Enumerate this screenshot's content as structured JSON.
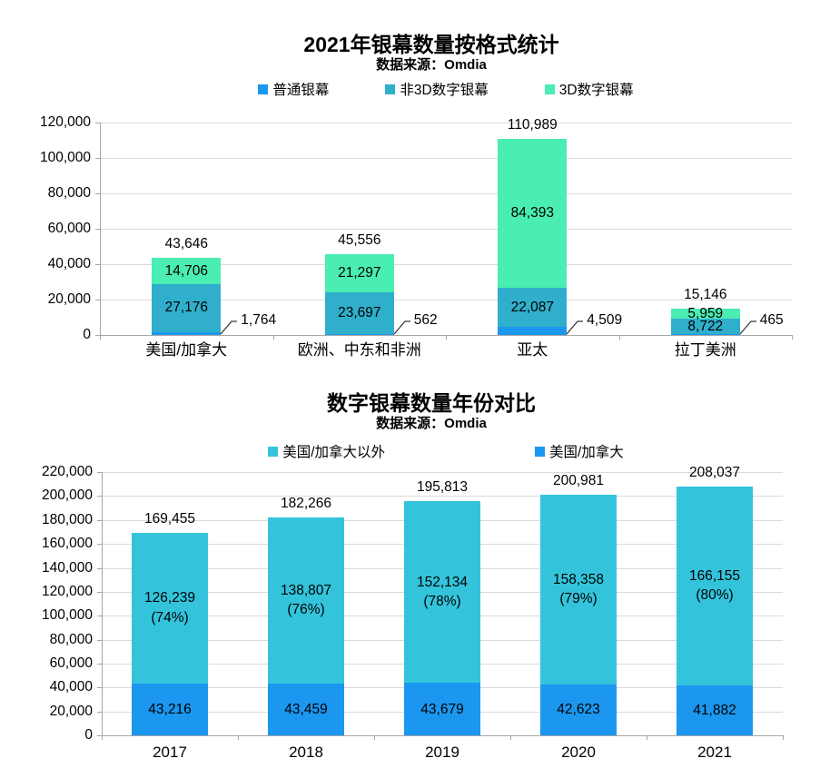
{
  "charts": [
    {
      "title": "2021年银幕数量按格式统计",
      "subtitle": "数据来源：Omdia",
      "legend": [
        {
          "label": "普通银幕",
          "color": "#1B97EF"
        },
        {
          "label": "非3D数字银幕",
          "color": "#2FAFCB"
        },
        {
          "label": "3D数字银幕",
          "color": "#4AEDB2"
        }
      ],
      "chart_data": {
        "type": "bar",
        "stacked": true,
        "grid": true,
        "legend_position": "top",
        "categories": [
          "美国/加拿大",
          "欧洲、中东和非洲",
          "亚太",
          "拉丁美洲"
        ],
        "series": [
          {
            "name": "普通银幕",
            "color": "#1B97EF",
            "values": [
              1764,
              562,
              4509,
              465
            ],
            "label_style": "callout"
          },
          {
            "name": "非3D数字银幕",
            "color": "#2FAFCB",
            "values": [
              27176,
              23697,
              22087,
              8722
            ],
            "label_style": "inside"
          },
          {
            "name": "3D数字银幕",
            "color": "#4AEDB2",
            "values": [
              14706,
              21297,
              84393,
              5959
            ],
            "label_style": "inside"
          }
        ],
        "totals": [
          43646,
          45556,
          110989,
          15146
        ],
        "ylabel": "",
        "xlabel": "",
        "ylim": [
          0,
          120000
        ],
        "ytick_step": 20000
      }
    },
    {
      "title": "数字银幕数量年份对比",
      "subtitle": "数据来源：Omdia",
      "legend": [
        {
          "label": "美国/加拿大以外",
          "color": "#33C4DC"
        },
        {
          "label": "美国/加拿大",
          "color": "#1B97EF"
        }
      ],
      "chart_data": {
        "type": "bar",
        "stacked": true,
        "grid": true,
        "legend_position": "top",
        "categories": [
          "2017",
          "2018",
          "2019",
          "2020",
          "2021"
        ],
        "series": [
          {
            "name": "美国/加拿大",
            "color": "#1B97EF",
            "values": [
              43216,
              43459,
              43679,
              42623,
              41882
            ],
            "label_style": "inside"
          },
          {
            "name": "美国/加拿大以外",
            "color": "#33C4DC",
            "values": [
              126239,
              138807,
              152134,
              158358,
              166155
            ],
            "pct": [
              74,
              76,
              78,
              79,
              80
            ],
            "label_style": "inside"
          }
        ],
        "totals": [
          169455,
          182266,
          195813,
          200981,
          208037
        ],
        "ylabel": "",
        "xlabel": "",
        "ylim": [
          0,
          220000
        ],
        "ytick_step": 20000
      }
    }
  ]
}
